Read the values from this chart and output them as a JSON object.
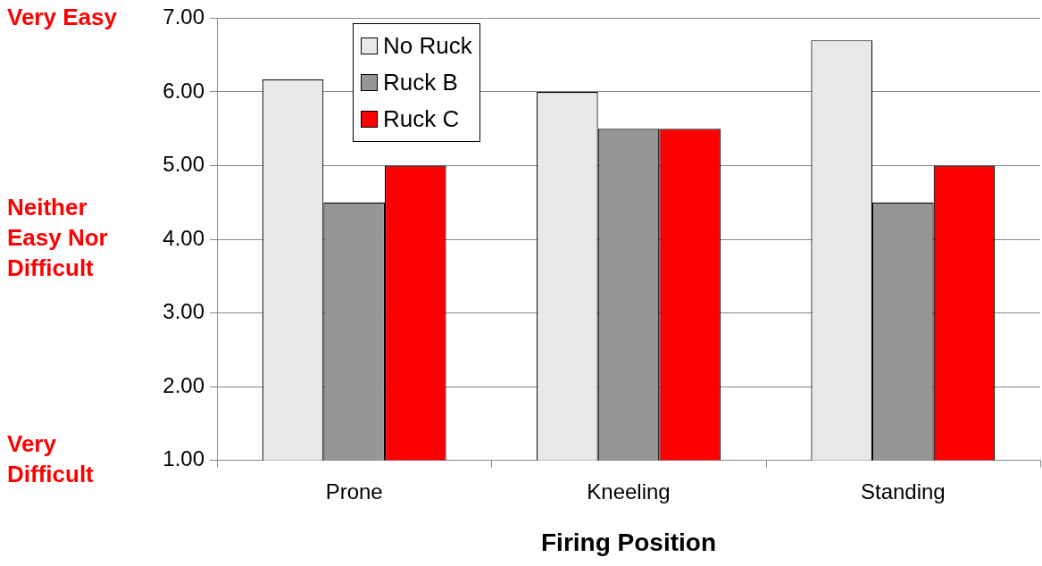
{
  "chart_data": {
    "type": "bar",
    "xlabel": "Firing Position",
    "categories": [
      "Prone",
      "Kneeling",
      "Standing"
    ],
    "series": [
      {
        "name": "No Ruck",
        "color": "#e8e8e8",
        "values": [
          6.17,
          6.0,
          6.7
        ]
      },
      {
        "name": "Ruck B",
        "color": "#969696",
        "values": [
          4.5,
          5.5,
          4.5
        ]
      },
      {
        "name": "Ruck C",
        "color": "#ff0000",
        "values": [
          5.0,
          5.5,
          5.0
        ]
      }
    ],
    "ylim": [
      1,
      7
    ],
    "yticks": [
      {
        "value": 1,
        "label": "1.00"
      },
      {
        "value": 2,
        "label": "2.00"
      },
      {
        "value": 3,
        "label": "3.00"
      },
      {
        "value": 4,
        "label": "4.00"
      },
      {
        "value": 5,
        "label": "5.00"
      },
      {
        "value": 6,
        "label": "6.00"
      },
      {
        "value": 7,
        "label": "7.00"
      }
    ],
    "grid": "y",
    "legend": "top left",
    "annotations": [
      "Very Easy",
      "Neither Easy Nor Difficult",
      "Very Difficult"
    ]
  }
}
